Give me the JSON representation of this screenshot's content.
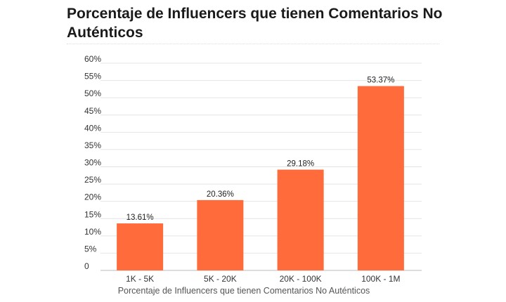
{
  "chart_data": {
    "type": "bar",
    "title": "Porcentaje de Influencers que tienen Comentarios No Auténticos",
    "xlabel": "Porcentaje de Influencers que tienen Comentarios No Auténticos",
    "ylabel": "",
    "categories": [
      "1K - 5K",
      "5K - 20K",
      "20K - 100K",
      "100K - 1M"
    ],
    "values": [
      13.61,
      20.36,
      29.18,
      53.37
    ],
    "data_labels": [
      "13.61%",
      "20.36%",
      "29.18%",
      "53.37%"
    ],
    "ylim": [
      0,
      60
    ],
    "y_ticks": [
      0,
      5,
      10,
      15,
      20,
      25,
      30,
      35,
      40,
      45,
      50,
      55,
      60
    ],
    "y_tick_labels": [
      "0",
      "5%",
      "10%",
      "15%",
      "20%",
      "25%",
      "30%",
      "35%",
      "40%",
      "45%",
      "50%",
      "55%",
      "60%"
    ],
    "grid": true,
    "legend": "none",
    "bar_color": "#ff6b3a",
    "grid_color": "#e4e4e4"
  }
}
